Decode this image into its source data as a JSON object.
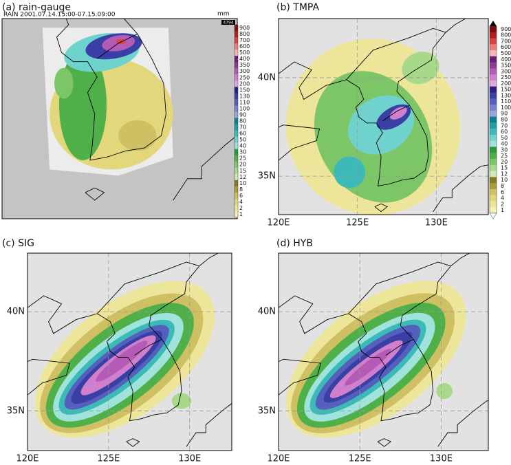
{
  "panels": [
    {
      "title": "(a) rain-gauge",
      "subtitle": "RAIN  2001.07.14.15:00-07.15.09:00",
      "unit": "mm",
      "badge": "4794",
      "colorbar": [
        900,
        800,
        700,
        600,
        500,
        400,
        350,
        300,
        250,
        200,
        150,
        130,
        110,
        100,
        90,
        80,
        70,
        60,
        50,
        40,
        30,
        25,
        20,
        15,
        12,
        10,
        8,
        6,
        4,
        2,
        1
      ]
    },
    {
      "title": "(b) TMPA",
      "lat_labels": [
        "40N",
        "35N"
      ],
      "lon_labels": [
        "120E",
        "125E",
        "130E"
      ],
      "colorbar": [
        900,
        800,
        700,
        600,
        500,
        400,
        350,
        300,
        250,
        200,
        150,
        130,
        110,
        100,
        90,
        80,
        70,
        60,
        50,
        40,
        30,
        25,
        20,
        15,
        12,
        10,
        8,
        6,
        4,
        2,
        1
      ]
    },
    {
      "title": "(c) SIG",
      "lat_labels": [
        "40N",
        "35N"
      ],
      "lon_labels": [
        "120E",
        "125E",
        "130E"
      ]
    },
    {
      "title": "(d) HYB",
      "lat_labels": [
        "40N",
        "35N"
      ],
      "lon_labels": [
        "120E",
        "125E",
        "130E"
      ]
    }
  ]
}
